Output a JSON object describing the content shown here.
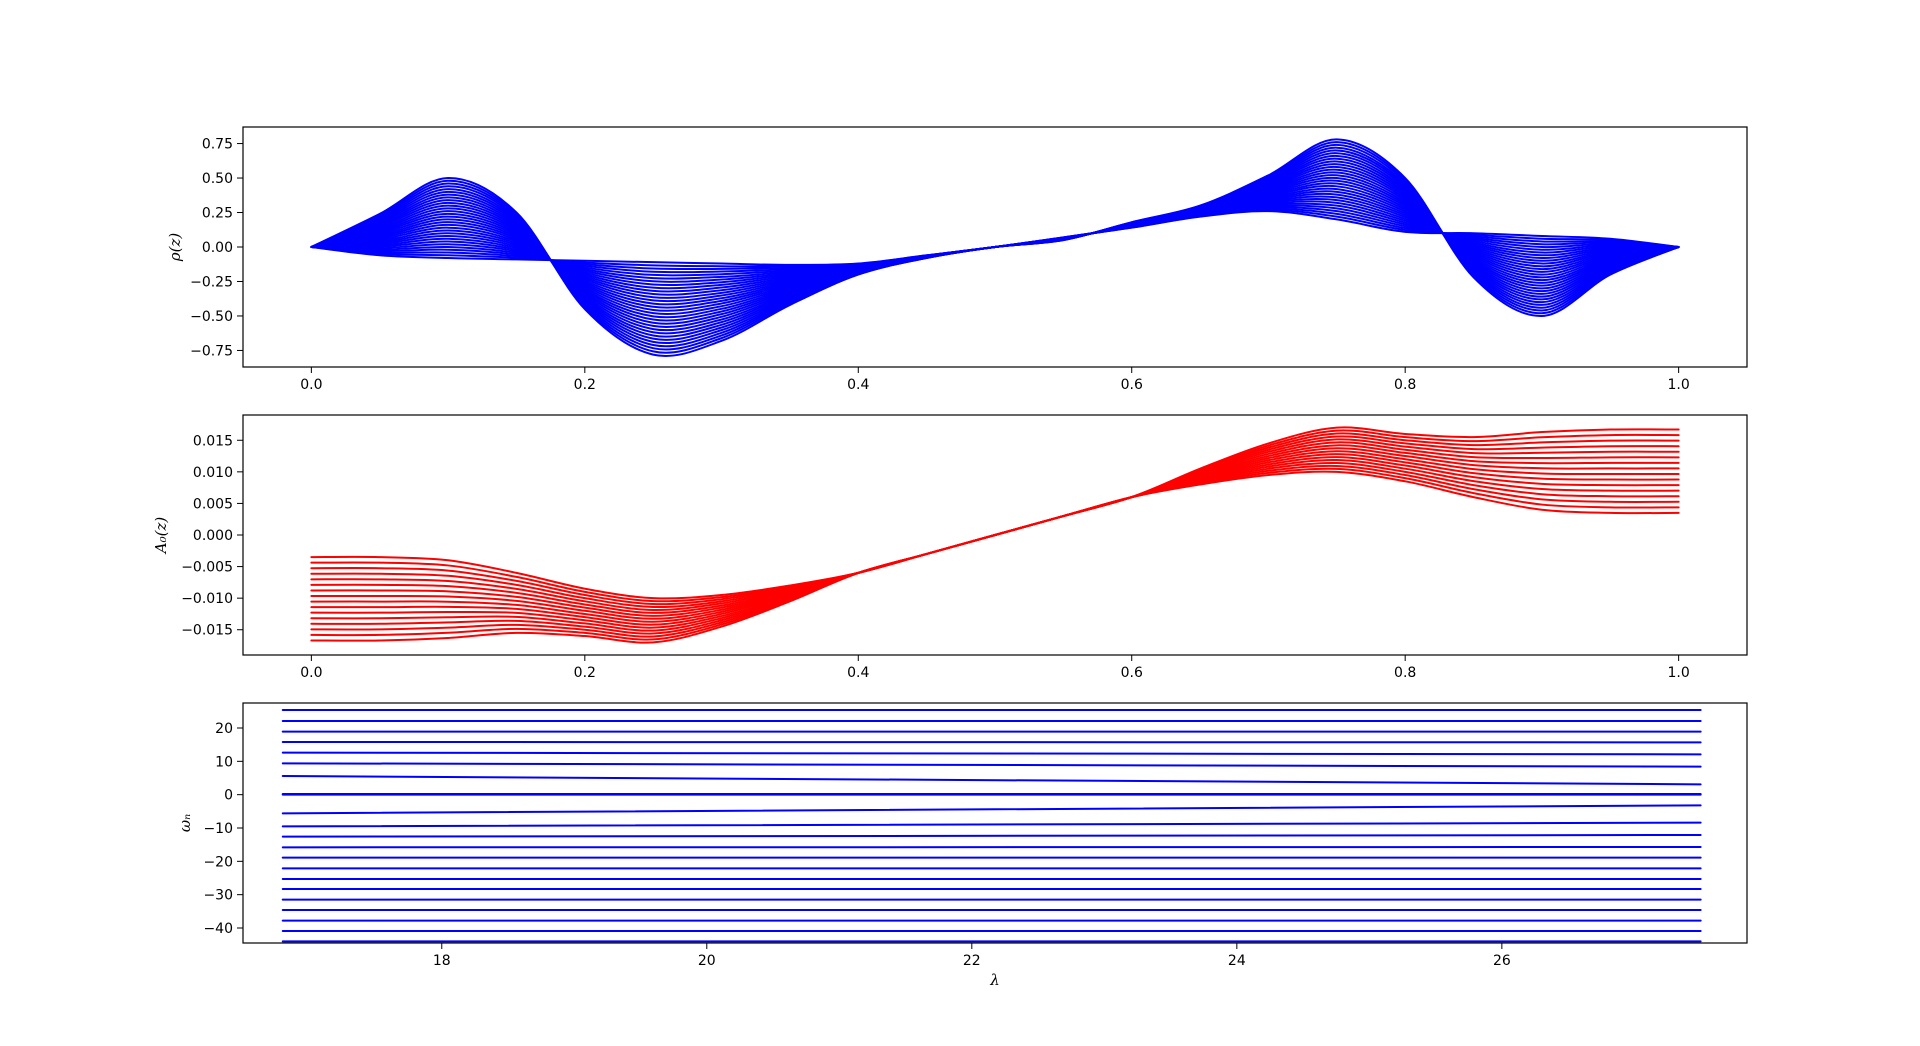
{
  "chart_data": [
    {
      "type": "line",
      "ylabel": "ρ(z)",
      "xlabel": "",
      "color": "#0000ff",
      "xlim": [
        -0.05,
        1.05
      ],
      "ylim": [
        -0.87,
        0.87
      ],
      "xticks": [
        "0.0",
        "0.2",
        "0.4",
        "0.6",
        "0.8",
        "1.0"
      ],
      "yticks": [
        "0.75",
        "0.50",
        "0.25",
        "0.00",
        "−0.25",
        "−0.50",
        "−0.75"
      ],
      "ytick_values": [
        0.75,
        0.5,
        0.25,
        0.0,
        -0.25,
        -0.5,
        -0.75
      ],
      "xtick_values": [
        0.0,
        0.2,
        0.4,
        0.6,
        0.8,
        1.0
      ],
      "grid": false,
      "curve_count": 30,
      "family": {
        "x": [
          0.0,
          0.05,
          0.1,
          0.15,
          0.2,
          0.25,
          0.3,
          0.35,
          0.4,
          0.45,
          0.5,
          0.55,
          0.6,
          0.65,
          0.7,
          0.75,
          0.8,
          0.85,
          0.9,
          0.95,
          1.0
        ],
        "first": [
          0.0,
          -0.06,
          -0.08,
          -0.09,
          -0.1,
          -0.11,
          -0.12,
          -0.13,
          -0.12,
          -0.06,
          0.0,
          0.07,
          0.14,
          0.22,
          0.26,
          0.2,
          0.11,
          0.1,
          0.08,
          0.06,
          0.0
        ],
        "last": [
          0.0,
          0.24,
          0.5,
          0.25,
          -0.45,
          -0.78,
          -0.68,
          -0.42,
          -0.2,
          -0.08,
          0.0,
          0.05,
          0.18,
          0.3,
          0.52,
          0.78,
          0.5,
          -0.22,
          -0.5,
          -0.2,
          0.0
        ]
      }
    },
    {
      "type": "line",
      "ylabel": "A₀(z)",
      "xlabel": "",
      "color": "#ff0000",
      "xlim": [
        -0.05,
        1.05
      ],
      "ylim": [
        -0.019,
        0.019
      ],
      "xticks": [
        "0.0",
        "0.2",
        "0.4",
        "0.6",
        "0.8",
        "1.0"
      ],
      "yticks": [
        "0.015",
        "0.010",
        "0.005",
        "0.000",
        "−0.005",
        "−0.010",
        "−0.015"
      ],
      "ytick_values": [
        0.015,
        0.01,
        0.005,
        0.0,
        -0.005,
        -0.01,
        -0.015
      ],
      "xtick_values": [
        0.0,
        0.2,
        0.4,
        0.6,
        0.8,
        1.0
      ],
      "grid": false,
      "curve_count": 16,
      "family": {
        "x": [
          0.0,
          0.05,
          0.1,
          0.15,
          0.2,
          0.25,
          0.3,
          0.35,
          0.4,
          0.45,
          0.5,
          0.55,
          0.6,
          0.65,
          0.7,
          0.75,
          0.8,
          0.85,
          0.9,
          0.95,
          1.0
        ],
        "first": [
          -0.0035,
          -0.0035,
          -0.004,
          -0.006,
          -0.0085,
          -0.01,
          -0.0095,
          -0.008,
          -0.006,
          -0.003,
          0.0,
          0.003,
          0.006,
          0.008,
          0.0095,
          0.01,
          0.0085,
          0.006,
          0.004,
          0.0035,
          0.0035
        ],
        "last": [
          -0.0167,
          -0.0167,
          -0.0163,
          -0.0155,
          -0.016,
          -0.017,
          -0.0145,
          -0.0105,
          -0.006,
          -0.003,
          0.0,
          0.003,
          0.006,
          0.0105,
          0.0145,
          0.017,
          0.016,
          0.0155,
          0.0163,
          0.0167,
          0.0167
        ]
      }
    },
    {
      "type": "line",
      "ylabel": "ωₙ",
      "xlabel": "λ",
      "color": "#0000ff",
      "xlim": [
        16.5,
        27.85
      ],
      "ylim": [
        -44.5,
        27.5
      ],
      "xticks": [
        "18",
        "20",
        "22",
        "24",
        "26"
      ],
      "xtick_values": [
        18,
        20,
        22,
        24,
        26
      ],
      "yticks": [
        "20",
        "10",
        "0",
        "−10",
        "−20",
        "−30",
        "−40"
      ],
      "ytick_values": [
        20,
        10,
        0,
        -10,
        -20,
        -30,
        -40
      ],
      "grid": false,
      "x": [
        16.8,
        27.5
      ],
      "series": [
        {
          "values": [
            25.4,
            25.4
          ]
        },
        {
          "values": [
            22.1,
            22.1
          ]
        },
        {
          "values": [
            18.9,
            18.9
          ]
        },
        {
          "values": [
            15.8,
            15.7
          ]
        },
        {
          "values": [
            12.6,
            12.1
          ]
        },
        {
          "values": [
            9.4,
            8.4
          ]
        },
        {
          "values": [
            5.6,
            3.1
          ]
        },
        {
          "values": [
            0.2,
            0.2
          ]
        },
        {
          "values": [
            0.0,
            0.0
          ]
        },
        {
          "values": [
            -5.6,
            -3.2
          ]
        },
        {
          "values": [
            -9.5,
            -8.4
          ]
        },
        {
          "values": [
            -12.6,
            -12.1
          ]
        },
        {
          "values": [
            -15.8,
            -15.7
          ]
        },
        {
          "values": [
            -18.9,
            -18.9
          ]
        },
        {
          "values": [
            -22.1,
            -22.1
          ]
        },
        {
          "values": [
            -25.3,
            -25.3
          ]
        },
        {
          "values": [
            -28.3,
            -28.3
          ]
        },
        {
          "values": [
            -31.5,
            -31.5
          ]
        },
        {
          "values": [
            -34.6,
            -34.6
          ]
        },
        {
          "values": [
            -37.8,
            -37.8
          ]
        },
        {
          "values": [
            -40.9,
            -40.9
          ]
        },
        {
          "values": [
            -44.0,
            -44.0
          ]
        }
      ]
    }
  ]
}
